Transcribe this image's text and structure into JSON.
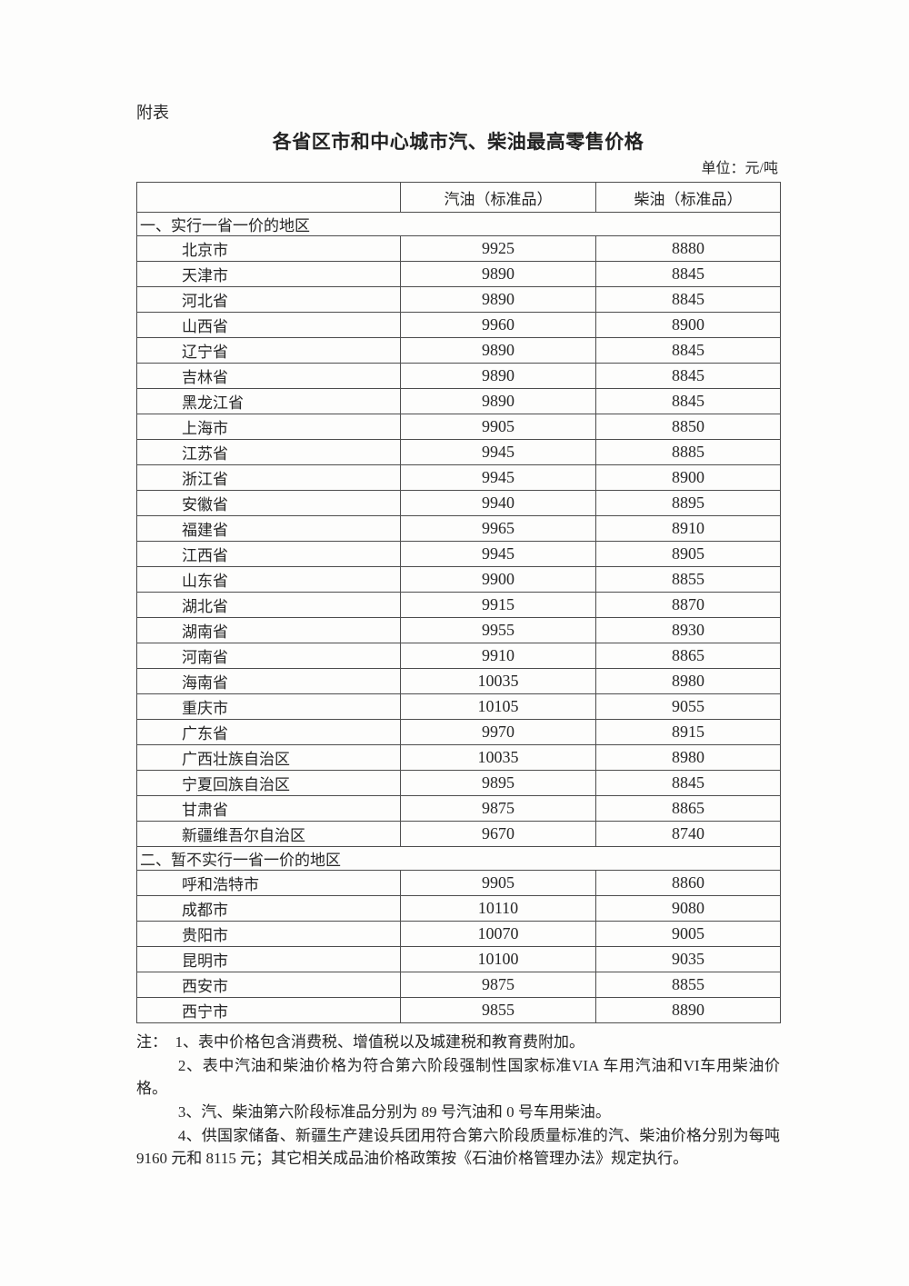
{
  "page": {
    "corner_label": "附表",
    "title": "各省区市和中心城市汽、柴油最高零售价格",
    "unit_label": "单位：元/吨"
  },
  "table": {
    "columns": [
      "",
      "汽油（标准品）",
      "柴油（标准品）"
    ],
    "sections": [
      {
        "header": "一、实行一省一价的地区",
        "rows": [
          {
            "region": "北京市",
            "gasoline": "9925",
            "diesel": "8880"
          },
          {
            "region": "天津市",
            "gasoline": "9890",
            "diesel": "8845"
          },
          {
            "region": "河北省",
            "gasoline": "9890",
            "diesel": "8845"
          },
          {
            "region": "山西省",
            "gasoline": "9960",
            "diesel": "8900"
          },
          {
            "region": "辽宁省",
            "gasoline": "9890",
            "diesel": "8845"
          },
          {
            "region": "吉林省",
            "gasoline": "9890",
            "diesel": "8845"
          },
          {
            "region": "黑龙江省",
            "gasoline": "9890",
            "diesel": "8845"
          },
          {
            "region": "上海市",
            "gasoline": "9905",
            "diesel": "8850"
          },
          {
            "region": "江苏省",
            "gasoline": "9945",
            "diesel": "8885"
          },
          {
            "region": "浙江省",
            "gasoline": "9945",
            "diesel": "8900"
          },
          {
            "region": "安徽省",
            "gasoline": "9940",
            "diesel": "8895"
          },
          {
            "region": "福建省",
            "gasoline": "9965",
            "diesel": "8910"
          },
          {
            "region": "江西省",
            "gasoline": "9945",
            "diesel": "8905"
          },
          {
            "region": "山东省",
            "gasoline": "9900",
            "diesel": "8855"
          },
          {
            "region": "湖北省",
            "gasoline": "9915",
            "diesel": "8870"
          },
          {
            "region": "湖南省",
            "gasoline": "9955",
            "diesel": "8930"
          },
          {
            "region": "河南省",
            "gasoline": "9910",
            "diesel": "8865"
          },
          {
            "region": "海南省",
            "gasoline": "10035",
            "diesel": "8980"
          },
          {
            "region": "重庆市",
            "gasoline": "10105",
            "diesel": "9055"
          },
          {
            "region": "广东省",
            "gasoline": "9970",
            "diesel": "8915"
          },
          {
            "region": "广西壮族自治区",
            "gasoline": "10035",
            "diesel": "8980"
          },
          {
            "region": "宁夏回族自治区",
            "gasoline": "9895",
            "diesel": "8845"
          },
          {
            "region": "甘肃省",
            "gasoline": "9875",
            "diesel": "8865"
          },
          {
            "region": "新疆维吾尔自治区",
            "gasoline": "9670",
            "diesel": "8740"
          }
        ]
      },
      {
        "header": "二、暂不实行一省一价的地区",
        "rows": [
          {
            "region": "呼和浩特市",
            "gasoline": "9905",
            "diesel": "8860"
          },
          {
            "region": "成都市",
            "gasoline": "10110",
            "diesel": "9080"
          },
          {
            "region": "贵阳市",
            "gasoline": "10070",
            "diesel": "9005"
          },
          {
            "region": "昆明市",
            "gasoline": "10100",
            "diesel": "9035"
          },
          {
            "region": "西安市",
            "gasoline": "9875",
            "diesel": "8855"
          },
          {
            "region": "西宁市",
            "gasoline": "9855",
            "diesel": "8890"
          }
        ]
      }
    ]
  },
  "notes": [
    {
      "indent": false,
      "text": "注：  1、表中价格包含消费税、增值税以及城建税和教育费附加。"
    },
    {
      "indent": true,
      "text": "2、表中汽油和柴油价格为符合第六阶段强制性国家标准VIA 车用汽油和VI车用柴油价格。"
    },
    {
      "indent": true,
      "text": "3、汽、柴油第六阶段标准品分别为 89 号汽油和 0 号车用柴油。"
    },
    {
      "indent": true,
      "text": "4、供国家储备、新疆生产建设兵团用符合第六阶段质量标准的汽、柴油价格分别为每吨 9160 元和 8115 元；其它相关成品油价格政策按《石油价格管理办法》规定执行。"
    }
  ]
}
